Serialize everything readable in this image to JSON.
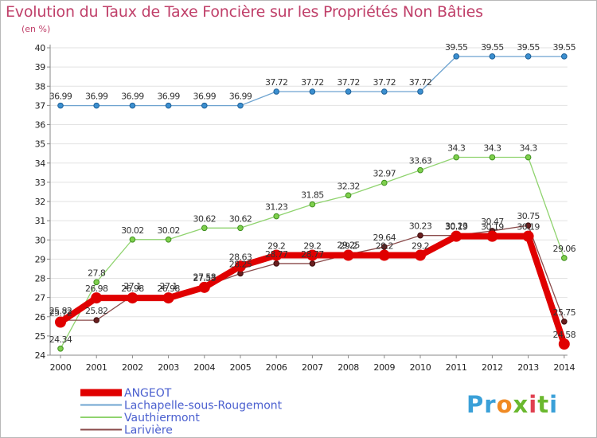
{
  "title": "Evolution du Taux de Taxe Foncière sur les Propriétés Non Bâties",
  "unit_label": "(en %)",
  "logo": {
    "letters": [
      "P",
      "r",
      "o",
      "x",
      "i",
      "t",
      "i"
    ],
    "colors": [
      "#3aa0d8",
      "#3aa0d8",
      "#f08a24",
      "#6ab82e",
      "#e04050",
      "#6ab82e",
      "#3aa0d8"
    ]
  },
  "chart_data": {
    "type": "line",
    "title": "Evolution du Taux de Taxe Foncière sur les Propriétés Non Bâties",
    "ylabel": "(en %)",
    "xlabel": "",
    "ylim": [
      24,
      40
    ],
    "yticks": [
      24,
      25,
      26,
      27,
      28,
      29,
      30,
      31,
      32,
      33,
      34,
      35,
      36,
      37,
      38,
      39,
      40
    ],
    "x": [
      2000,
      2001,
      2002,
      2003,
      2004,
      2005,
      2006,
      2007,
      2008,
      2009,
      2010,
      2011,
      2012,
      2013,
      2014
    ],
    "grid": "horizontal",
    "legend_position": "bottom-left",
    "series": [
      {
        "name": "ANGEOT",
        "color": "#e00000",
        "values": [
          25.72,
          26.98,
          26.98,
          26.98,
          27.53,
          28.63,
          29.2,
          29.2,
          29.2,
          29.2,
          29.2,
          30.19,
          30.19,
          30.19,
          24.58
        ],
        "labels": [
          "25.72",
          "26.98",
          "26.98",
          "26.98",
          "27.53",
          "28.63",
          "29.2",
          "29.2",
          "29.2",
          "29.2",
          "29.2",
          "30.19",
          "30.19",
          "30.19",
          "24.58"
        ]
      },
      {
        "name": "Lachapelle-sous-Rougemont",
        "color": "#6fa4d0",
        "values": [
          36.99,
          36.99,
          36.99,
          36.99,
          36.99,
          36.99,
          37.72,
          37.72,
          37.72,
          37.72,
          37.72,
          39.55,
          39.55,
          39.55,
          39.55
        ],
        "labels": [
          "36.99",
          "36.99",
          "36.99",
          "36.99",
          "36.99",
          "36.99",
          "37.72",
          "37.72",
          "37.72",
          "37.72",
          "37.72",
          "39.55",
          "39.55",
          "39.55",
          "39.55"
        ]
      },
      {
        "name": "Vauthiermont",
        "color": "#8fd36e",
        "values": [
          24.34,
          27.8,
          30.02,
          30.02,
          30.62,
          30.62,
          31.23,
          31.85,
          32.32,
          32.97,
          33.63,
          34.3,
          34.3,
          34.3,
          29.06
        ],
        "labels": [
          "24.34",
          "27.8",
          "30.02",
          "30.02",
          "30.62",
          "30.62",
          "31.23",
          "31.85",
          "32.32",
          "32.97",
          "33.63",
          "34.3",
          "34.3",
          "34.3",
          "29.06"
        ]
      },
      {
        "name": "Larivière",
        "color": "#8a4a4a",
        "values": [
          25.82,
          25.82,
          27.1,
          27.1,
          27.58,
          28.25,
          28.77,
          28.77,
          29.25,
          29.64,
          30.23,
          30.23,
          30.47,
          30.75,
          25.75
        ],
        "labels": [
          "25.82",
          "25.82",
          "27.1",
          "27.1",
          "27.58",
          "28.25",
          "28.77",
          "28.77",
          "29.25",
          "29.64",
          "30.23",
          "30.23",
          "30.47",
          "30.75",
          "25.75"
        ]
      }
    ]
  }
}
